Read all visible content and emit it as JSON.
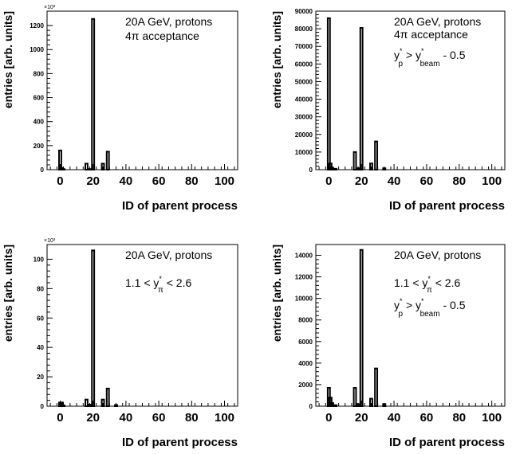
{
  "chart_data": [
    {
      "type": "bar",
      "xlabel": "ID of parent process",
      "ylabel": "entries [arb. units]",
      "y_multiplier": "×10³",
      "xlim": [
        -8,
        108
      ],
      "ylim": [
        0,
        1320
      ],
      "x_ticks": [
        0,
        20,
        40,
        60,
        80,
        100
      ],
      "y_ticks": [
        0,
        200,
        400,
        600,
        800,
        1000,
        1200
      ],
      "legend": [
        "20A GeV, protons",
        "4π acceptance"
      ],
      "bins": [
        {
          "x": 0,
          "value": 160
        },
        {
          "x": 1,
          "value": 15
        },
        {
          "x": 2,
          "value": 5
        },
        {
          "x": 16,
          "value": 50
        },
        {
          "x": 18,
          "value": 5
        },
        {
          "x": 20,
          "value": 1255
        },
        {
          "x": 26,
          "value": 50
        },
        {
          "x": 29,
          "value": 150
        }
      ]
    },
    {
      "type": "bar",
      "xlabel": "ID of parent process",
      "ylabel": "entries [arb. units]",
      "xlim": [
        -8,
        108
      ],
      "ylim": [
        0,
        90000
      ],
      "x_ticks": [
        0,
        20,
        40,
        60,
        80,
        100
      ],
      "y_ticks": [
        0,
        10000,
        20000,
        30000,
        40000,
        50000,
        60000,
        70000,
        80000,
        90000
      ],
      "legend": [
        "20A GeV, protons",
        "4π acceptance",
        "y*p > y*beam - 0.5"
      ],
      "bins": [
        {
          "x": 0,
          "value": 86000
        },
        {
          "x": 1,
          "value": 3500
        },
        {
          "x": 2,
          "value": 1200
        },
        {
          "x": 4,
          "value": 500
        },
        {
          "x": 16,
          "value": 10000
        },
        {
          "x": 18,
          "value": 800
        },
        {
          "x": 20,
          "value": 80500
        },
        {
          "x": 26,
          "value": 3500
        },
        {
          "x": 29,
          "value": 16000
        },
        {
          "x": 34,
          "value": 800
        }
      ]
    },
    {
      "type": "bar",
      "xlabel": "ID of parent process",
      "ylabel": "entries [arb. units]",
      "y_multiplier": "×10³",
      "xlim": [
        -8,
        108
      ],
      "ylim": [
        0,
        110
      ],
      "x_ticks": [
        0,
        20,
        40,
        60,
        80,
        100
      ],
      "y_ticks": [
        0,
        20,
        40,
        60,
        80,
        100
      ],
      "legend": [
        "20A GeV, protons",
        "1.1 < y*π < 2.6"
      ],
      "bins": [
        {
          "x": 0,
          "value": 2.5
        },
        {
          "x": 1,
          "value": 2.5
        },
        {
          "x": 2,
          "value": 0.5
        },
        {
          "x": 16,
          "value": 4.5
        },
        {
          "x": 18,
          "value": 1
        },
        {
          "x": 20,
          "value": 106
        },
        {
          "x": 26,
          "value": 4.5
        },
        {
          "x": 29,
          "value": 12
        },
        {
          "x": 34,
          "value": 0.8
        }
      ]
    },
    {
      "type": "bar",
      "xlabel": "ID of parent process",
      "ylabel": "entries [arb. units]",
      "xlim": [
        -8,
        108
      ],
      "ylim": [
        0,
        15000
      ],
      "x_ticks": [
        0,
        20,
        40,
        60,
        80,
        100
      ],
      "y_ticks": [
        0,
        2000,
        4000,
        6000,
        8000,
        10000,
        12000,
        14000
      ],
      "legend": [
        "20A GeV, protons",
        "1.1 < y*π < 2.6",
        "y*p > y*beam - 0.5"
      ],
      "bins": [
        {
          "x": 0,
          "value": 1700
        },
        {
          "x": 1,
          "value": 800
        },
        {
          "x": 2,
          "value": 300
        },
        {
          "x": 4,
          "value": 100
        },
        {
          "x": 16,
          "value": 1700
        },
        {
          "x": 18,
          "value": 200
        },
        {
          "x": 20,
          "value": 14500
        },
        {
          "x": 26,
          "value": 700
        },
        {
          "x": 29,
          "value": 3500
        },
        {
          "x": 34,
          "value": 200
        }
      ]
    }
  ]
}
